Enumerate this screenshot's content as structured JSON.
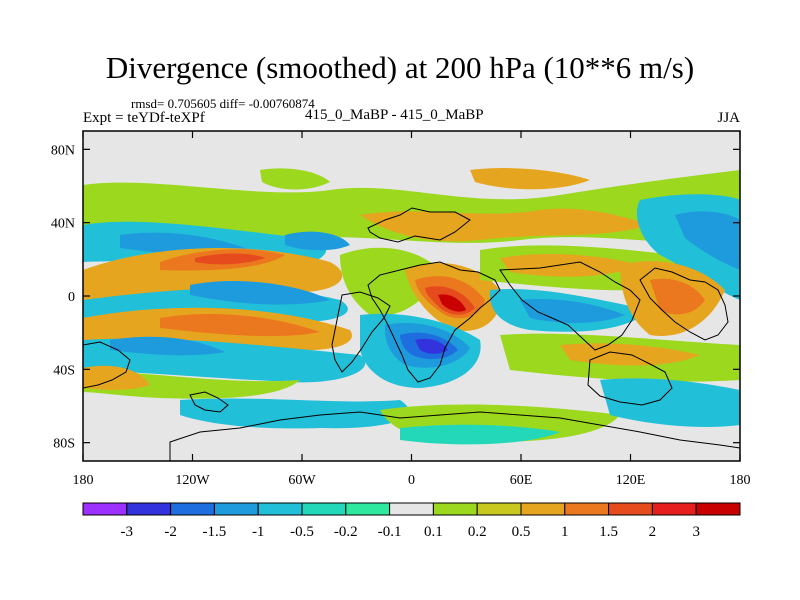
{
  "chart_data": {
    "type": "heatmap",
    "title": "Divergence (smoothed) at 200 hPa (10**6 m/s)",
    "stats_text": "rmsd= 0.705605 diff= -0.00760874",
    "left_subtitle": "Expt = teYDf-teXPf",
    "center_subtitle": "415_0_MaBP - 415_0_MaBP",
    "right_subtitle": "JJA",
    "x_ticks": [
      {
        "value": -180,
        "label": "180"
      },
      {
        "value": -120,
        "label": "120W"
      },
      {
        "value": -60,
        "label": "60W"
      },
      {
        "value": 0,
        "label": "0"
      },
      {
        "value": 60,
        "label": "60E"
      },
      {
        "value": 120,
        "label": "120E"
      },
      {
        "value": 180,
        "label": "180"
      }
    ],
    "y_ticks": [
      {
        "value": 80,
        "label": "80N"
      },
      {
        "value": 40,
        "label": "40N"
      },
      {
        "value": 0,
        "label": "0"
      },
      {
        "value": -40,
        "label": "40S"
      },
      {
        "value": -80,
        "label": "80S"
      }
    ],
    "xlim": [
      -180,
      180
    ],
    "ylim": [
      -90,
      90
    ],
    "colorbar": {
      "levels": [
        "-3",
        "-2",
        "-1.5",
        "-1",
        "-0.5",
        "-0.2",
        "-0.1",
        "0.1",
        "0.2",
        "0.5",
        "1",
        "1.5",
        "2",
        "3"
      ],
      "colors": [
        "#9b30ff",
        "#3333dd",
        "#1e6ee0",
        "#1e9bdc",
        "#22bfd8",
        "#22d8b8",
        "#2ee8a0",
        "#e6e6e6",
        "#9bd81e",
        "#c8c81e",
        "#e6a51e",
        "#eb781e",
        "#e64b1e",
        "#e61e1e",
        "#c80000"
      ]
    },
    "features": [
      {
        "name": "convergence-band-north-pacific",
        "lon": -125,
        "lat": 30,
        "value": -0.5
      },
      {
        "name": "divergence-max-north-pacific",
        "lon": -115,
        "lat": 20,
        "value": 1.5
      },
      {
        "name": "convergence-east-pacific",
        "lon": -90,
        "lat": 5,
        "value": -1.5
      },
      {
        "name": "divergence-band-south-pacific",
        "lon": -100,
        "lat": -15,
        "value": 1
      },
      {
        "name": "divergence-max-africa",
        "lon": 15,
        "lat": -5,
        "value": 3
      },
      {
        "name": "convergence-min-south-atlantic",
        "lon": 10,
        "lat": -25,
        "value": -2
      },
      {
        "name": "convergence-band-southern-ocean",
        "lon": -40,
        "lat": -55,
        "value": -0.5
      },
      {
        "name": "divergence-band-indian-ocean",
        "lon": 90,
        "lat": 10,
        "value": 1
      },
      {
        "name": "divergence-band-subtropical-north",
        "lon": 30,
        "lat": 45,
        "value": 0.5
      },
      {
        "name": "convergence-west-pacific",
        "lon": 140,
        "lat": 30,
        "value": -0.5
      }
    ]
  }
}
